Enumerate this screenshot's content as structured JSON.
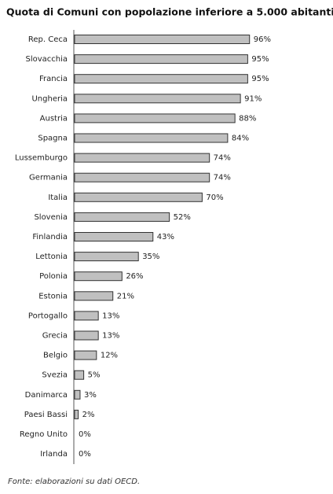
{
  "chart_data": {
    "type": "barh",
    "title": "Quota di Comuni con popolazione inferiore a 5.000 abitanti",
    "categories": [
      "Rep. Ceca",
      "Slovacchia",
      "Francia",
      "Ungheria",
      "Austria",
      "Spagna",
      "Lussemburgo",
      "Germania",
      "Italia",
      "Slovenia",
      "Finlandia",
      "Lettonia",
      "Polonia",
      "Estonia",
      "Portogallo",
      "Grecia",
      "Belgio",
      "Svezia",
      "Danimarca",
      "Paesi Bassi",
      "Regno Unito",
      "Irlanda"
    ],
    "values": [
      96,
      95,
      95,
      91,
      88,
      84,
      74,
      74,
      70,
      52,
      43,
      35,
      26,
      21,
      13,
      13,
      12,
      5,
      3,
      2,
      0,
      0
    ],
    "value_labels": [
      "96%",
      "95%",
      "95%",
      "91%",
      "88%",
      "84%",
      "74%",
      "74%",
      "70%",
      "52%",
      "43%",
      "35%",
      "26%",
      "21%",
      "13%",
      "13%",
      "12%",
      "5%",
      "3%",
      "2%",
      "0%",
      "0%"
    ],
    "color": "#c0c0c0",
    "source": "Fonte: elaborazioni su dati OECD."
  }
}
